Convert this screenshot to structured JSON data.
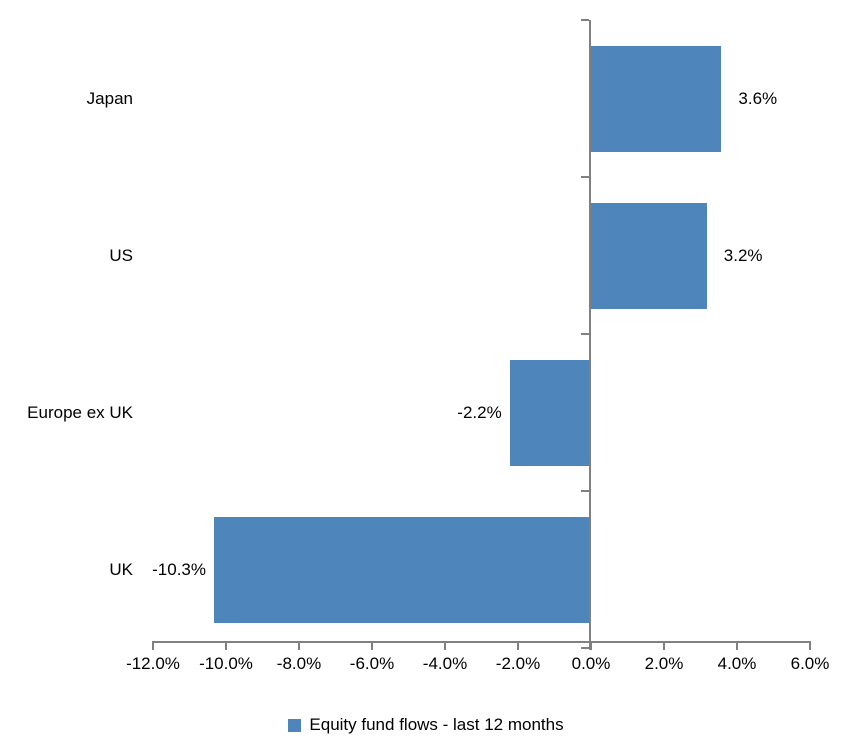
{
  "chart_data": {
    "type": "bar",
    "orientation": "horizontal",
    "title": "",
    "categories": [
      "Japan",
      "US",
      "Europe ex UK",
      "UK"
    ],
    "series": [
      {
        "name": "Equity fund flows - last 12 months",
        "values": [
          3.6,
          3.2,
          -2.2,
          -10.3
        ],
        "data_labels": [
          "3.6%",
          "3.2%",
          "-2.2%",
          "-10.3%"
        ],
        "color": "#4e86bc"
      }
    ],
    "xlabel": "",
    "ylabel": "",
    "xlim": [
      -12,
      6
    ],
    "x_tick_values": [
      -12,
      -10,
      -8,
      -6,
      -4,
      -2,
      0,
      2,
      4,
      6
    ],
    "x_tick_labels": [
      "-12.0%",
      "-10.0%",
      "-8.0%",
      "-6.0%",
      "-4.0%",
      "-2.0%",
      "0.0%",
      "2.0%",
      "4.0%",
      "6.0%"
    ],
    "grid": false,
    "legend_position": "bottom",
    "axis_color": "#808080",
    "text_color": "#000000",
    "background_color": "#ffffff"
  },
  "legend": {
    "label": "Equity fund flows - last 12 months",
    "marker_color": "#4e86bc",
    "marker_icon": "square-icon"
  }
}
